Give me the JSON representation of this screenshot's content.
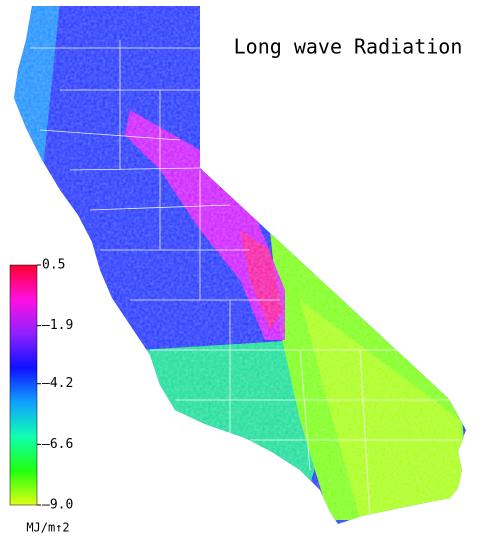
{
  "title": "Long wave Radiation",
  "colorbar": {
    "lim": [
      -9.0,
      0.5
    ],
    "ticks": [
      0.5,
      {
        "value": -1.9,
        "label": "–1.9"
      },
      {
        "value": -4.2,
        "label": "–4.2"
      },
      {
        "value": -6.6,
        "label": "–6.6"
      },
      {
        "value": -9.0,
        "label": "–9.0"
      }
    ],
    "colors": [
      "#ff0030",
      "#ff10e0",
      "#9020ff",
      "#1010ff",
      "#10a0ff",
      "#10ffb0",
      "#20ff10",
      "#e0ff10"
    ],
    "unit": "MJ/m↑2"
  }
}
